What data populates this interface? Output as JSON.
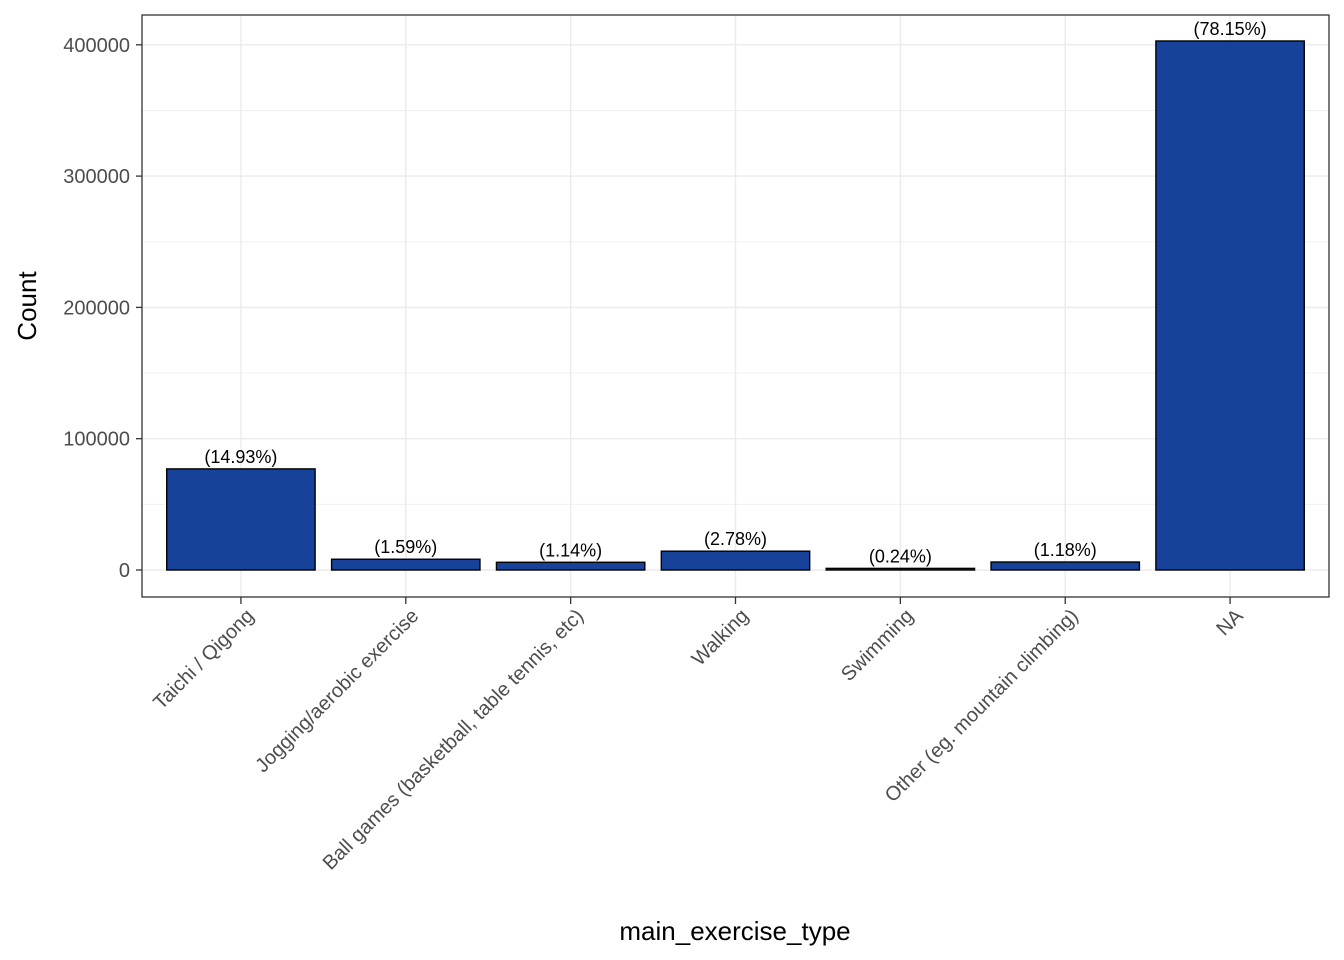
{
  "chart_data": {
    "type": "bar",
    "title": "",
    "xlabel": "main_exercise_type",
    "ylabel": "Count",
    "ylim": [
      -20000,
      423000
    ],
    "yticks": [
      0,
      100000,
      200000,
      300000,
      400000
    ],
    "ytick_labels": [
      "0",
      "100000",
      "200000",
      "300000",
      "400000"
    ],
    "grid": true,
    "bar_color": "#17429A",
    "categories": [
      "Taichi / Qigong",
      "Jogging/aerobic exercise",
      "Ball games (basketball, table tennis, etc)",
      "Walking",
      "Swimming",
      "Other (eg. mountain climbing)",
      "NA"
    ],
    "values": [
      77000,
      8200,
      5880,
      14330,
      1240,
      6080,
      402900
    ],
    "labels": [
      "(14.93%)",
      "(1.59%)",
      "(1.14%)",
      "(2.78%)",
      "(0.24%)",
      "(1.18%)",
      "(78.15%)"
    ]
  }
}
